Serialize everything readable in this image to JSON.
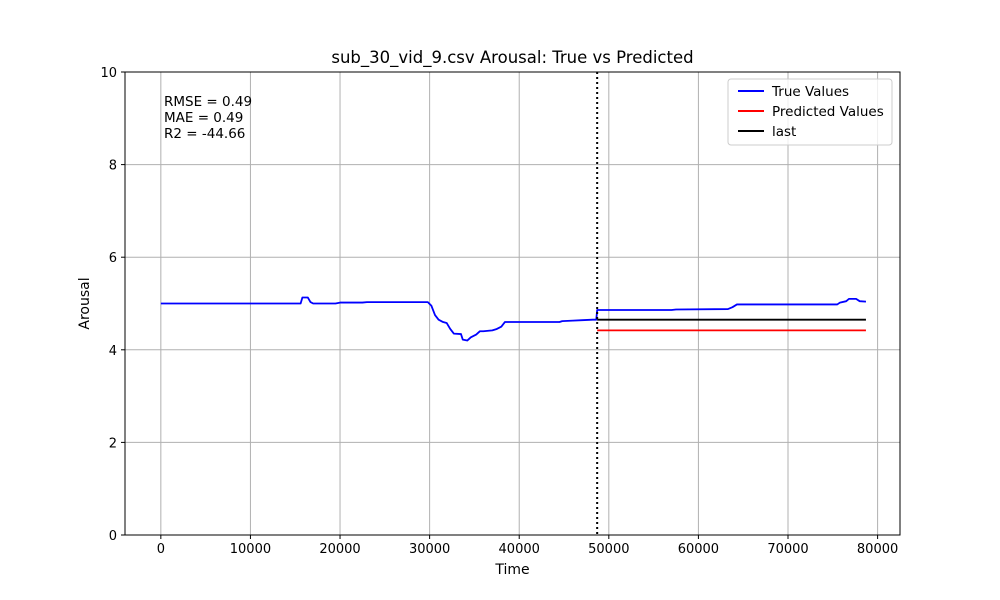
{
  "chart_data": {
    "type": "line",
    "title": "sub_30_vid_9.csv Arousal: True vs Predicted",
    "xlabel": "Time",
    "ylabel": "Arousal",
    "xlim": [
      -4000,
      82500
    ],
    "ylim": [
      0,
      10
    ],
    "x_ticks": [
      0,
      10000,
      20000,
      30000,
      40000,
      50000,
      60000,
      70000,
      80000
    ],
    "y_ticks": [
      0,
      2,
      4,
      6,
      8,
      10
    ],
    "grid": true,
    "legend_position": "top-right",
    "vertical_marker": {
      "x": 48700,
      "style": "dotted",
      "color": "#000000"
    },
    "stats_text": [
      "RMSE = 0.49",
      "MAE = 0.49",
      "R2 = -44.66"
    ],
    "series": [
      {
        "name": "True Values",
        "color": "#0000ff",
        "points": [
          [
            0,
            5.0
          ],
          [
            15600,
            5.0
          ],
          [
            15800,
            5.13
          ],
          [
            16400,
            5.13
          ],
          [
            16700,
            5.03
          ],
          [
            17000,
            5.0
          ],
          [
            19500,
            5.0
          ],
          [
            20000,
            5.02
          ],
          [
            22500,
            5.02
          ],
          [
            23000,
            5.03
          ],
          [
            29800,
            5.03
          ],
          [
            30200,
            4.95
          ],
          [
            30600,
            4.75
          ],
          [
            31000,
            4.65
          ],
          [
            31500,
            4.6
          ],
          [
            31900,
            4.58
          ],
          [
            32300,
            4.45
          ],
          [
            32700,
            4.35
          ],
          [
            33500,
            4.34
          ],
          [
            33700,
            4.22
          ],
          [
            34200,
            4.2
          ],
          [
            34600,
            4.27
          ],
          [
            35200,
            4.33
          ],
          [
            35600,
            4.4
          ],
          [
            36000,
            4.4
          ],
          [
            37000,
            4.42
          ],
          [
            37500,
            4.45
          ],
          [
            38000,
            4.5
          ],
          [
            38400,
            4.6
          ],
          [
            44500,
            4.6
          ],
          [
            44800,
            4.62
          ],
          [
            46000,
            4.63
          ],
          [
            47000,
            4.64
          ],
          [
            48200,
            4.65
          ],
          [
            48600,
            4.65
          ],
          [
            48700,
            4.86
          ],
          [
            57000,
            4.86
          ],
          [
            57500,
            4.87
          ],
          [
            63300,
            4.88
          ],
          [
            63800,
            4.92
          ],
          [
            64300,
            4.98
          ],
          [
            75500,
            4.98
          ],
          [
            75800,
            5.02
          ],
          [
            76500,
            5.05
          ],
          [
            76800,
            5.1
          ],
          [
            77600,
            5.1
          ],
          [
            78000,
            5.05
          ],
          [
            78700,
            5.04
          ]
        ]
      },
      {
        "name": "Predicted Values",
        "color": "#ff0000",
        "points": [
          [
            48700,
            4.42
          ],
          [
            78700,
            4.42
          ]
        ]
      },
      {
        "name": "last",
        "color": "#000000",
        "points": [
          [
            48700,
            4.65
          ],
          [
            78700,
            4.65
          ]
        ]
      }
    ]
  }
}
